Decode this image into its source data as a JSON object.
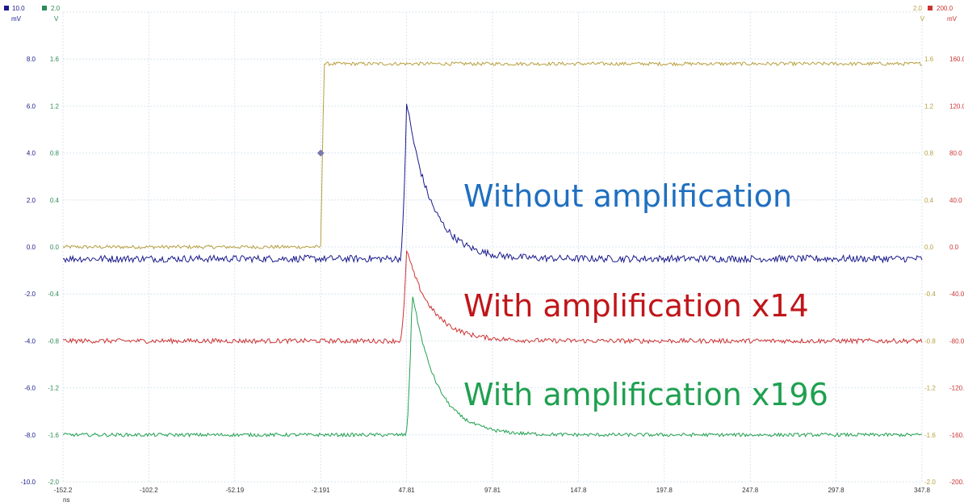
{
  "chart_data": {
    "type": "line",
    "x_unit": "ns",
    "x_ticks": [
      "-152.2",
      "-102.2",
      "-52.19",
      "-2.191",
      "47.81",
      "97.81",
      "147.8",
      "197.8",
      "247.8",
      "297.8",
      "347.8"
    ],
    "xlim": [
      -152.2,
      347.8
    ],
    "grid": true,
    "axes": [
      {
        "id": "a",
        "side": "left",
        "top_label": "10.0",
        "unit": "mV",
        "color": "#1a1a8c",
        "ylim": [
          -10,
          10
        ],
        "ticks": [
          "-10.0",
          "-8.0",
          "-6.0",
          "-4.0",
          "-2.0",
          "0.0",
          "2.0",
          "4.0",
          "6.0",
          "8.0"
        ]
      },
      {
        "id": "b",
        "side": "left",
        "top_label": "2.0",
        "unit": "V",
        "color": "#2e8b57",
        "ylim": [
          -2,
          2
        ],
        "ticks": [
          "-2.0",
          "-1.6",
          "-1.2",
          "-0.8",
          "-0.4",
          "0.0",
          "0.4",
          "0.8",
          "1.2",
          "1.6"
        ]
      },
      {
        "id": "c",
        "side": "right",
        "top_label": "2.0",
        "unit": "V",
        "color": "#b8a040",
        "ylim": [
          -2,
          2
        ],
        "ticks": [
          "-2.0",
          "-1.6",
          "-1.2",
          "-0.8",
          "-0.4",
          "0.0",
          "0.4",
          "0.8",
          "1.2",
          "1.6"
        ]
      },
      {
        "id": "d",
        "side": "right",
        "top_label": "200.0",
        "unit": "mV",
        "color": "#cc3333",
        "ylim": [
          -200,
          200
        ],
        "ticks": [
          "-200.0",
          "-160.0",
          "-120.0",
          "-80.0",
          "-40.0",
          "0.0",
          "40.0",
          "80.0",
          "120.0",
          "160.0"
        ]
      }
    ],
    "series": [
      {
        "color": "#b8a040",
        "axis": "c",
        "baseline": 0.0,
        "step_at": -2.191,
        "step_level": 1.56,
        "noise": 0.015
      },
      {
        "color": "#1a1a8c",
        "axis": "a",
        "baseline": -0.5,
        "peak_x": 47.81,
        "peak": 6.2,
        "noise": 0.15
      },
      {
        "color": "#cc3333",
        "axis": "d",
        "baseline": -80,
        "peak_x": 47.81,
        "peak": -2,
        "noise": 2
      },
      {
        "color": "#22a050",
        "axis": "b",
        "baseline": -1.6,
        "peak_x": 51.0,
        "peak": -0.38,
        "noise": 0.015
      }
    ],
    "annotations": [
      {
        "text": "Without amplification",
        "color": "#1f6fc0"
      },
      {
        "text": "With amplification x14",
        "color": "#c0161a"
      },
      {
        "text": "With amplification x196",
        "color": "#1fa050"
      }
    ],
    "marker": {
      "x": -2.191,
      "y": 0.8,
      "axis": "c"
    }
  }
}
